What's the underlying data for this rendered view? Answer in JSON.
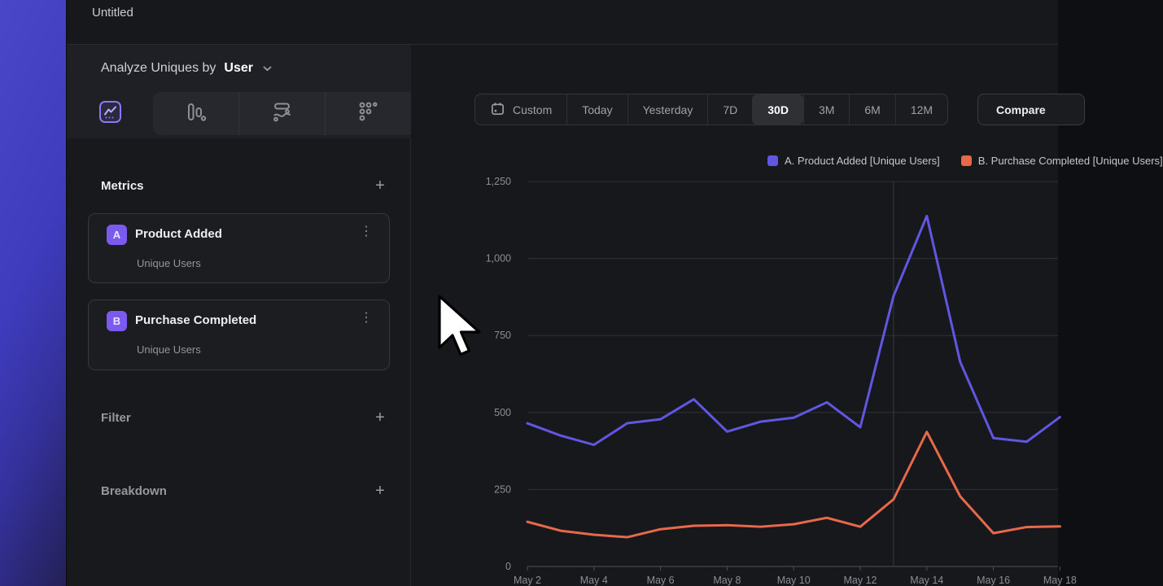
{
  "window": {
    "title": "Untitled"
  },
  "icons": {
    "plus": "+",
    "kebab": "⋮"
  },
  "sidebar": {
    "analyze": {
      "prefix": "Analyze Uniques by",
      "value": "User"
    },
    "metrics": {
      "heading": "Metrics",
      "items": [
        {
          "badge": "A",
          "title": "Product Added",
          "subtitle": "Unique Users"
        },
        {
          "badge": "B",
          "title": "Purchase Completed",
          "subtitle": "Unique Users"
        }
      ]
    },
    "filter": {
      "heading": "Filter"
    },
    "breakdown": {
      "heading": "Breakdown"
    }
  },
  "toolbar": {
    "ranges": [
      "Custom",
      "Today",
      "Yesterday",
      "7D",
      "30D",
      "3M",
      "6M",
      "12M"
    ],
    "selected_range": "30D",
    "compare_label": "Compare"
  },
  "legend": [
    {
      "label": "A. Product Added [Unique Users]",
      "color": "#6156e2"
    },
    {
      "label": "B. Purchase Completed [Unique Users]",
      "color": "#e8684a"
    }
  ],
  "chart_data": {
    "type": "line",
    "x": [
      "May 2",
      "May 3",
      "May 4",
      "May 5",
      "May 6",
      "May 7",
      "May 8",
      "May 9",
      "May 10",
      "May 11",
      "May 12",
      "May 13",
      "May 14",
      "May 15",
      "May 16",
      "May 17",
      "May 18"
    ],
    "series": [
      {
        "name": "A. Product Added [Unique Users]",
        "color": "#6156e2",
        "values": [
          465,
          425,
          395,
          465,
          478,
          543,
          438,
          470,
          483,
          533,
          452,
          878,
          1138,
          665,
          417,
          405,
          485
        ]
      },
      {
        "name": "B. Purchase Completed [Unique Users]",
        "color": "#e8684a",
        "values": [
          145,
          116,
          103,
          95,
          121,
          132,
          134,
          129,
          137,
          158,
          129,
          218,
          437,
          228,
          108,
          128,
          130
        ]
      }
    ],
    "ylim": [
      0,
      1250
    ],
    "yticks": [
      0,
      250,
      500,
      750,
      1000,
      1250
    ],
    "ytick_labels": [
      "0",
      "250",
      "500",
      "750",
      "1,000",
      "1,250"
    ],
    "xtick_every": 2,
    "vline_x": "May 13",
    "grid": true,
    "legend_position": "top-right"
  }
}
